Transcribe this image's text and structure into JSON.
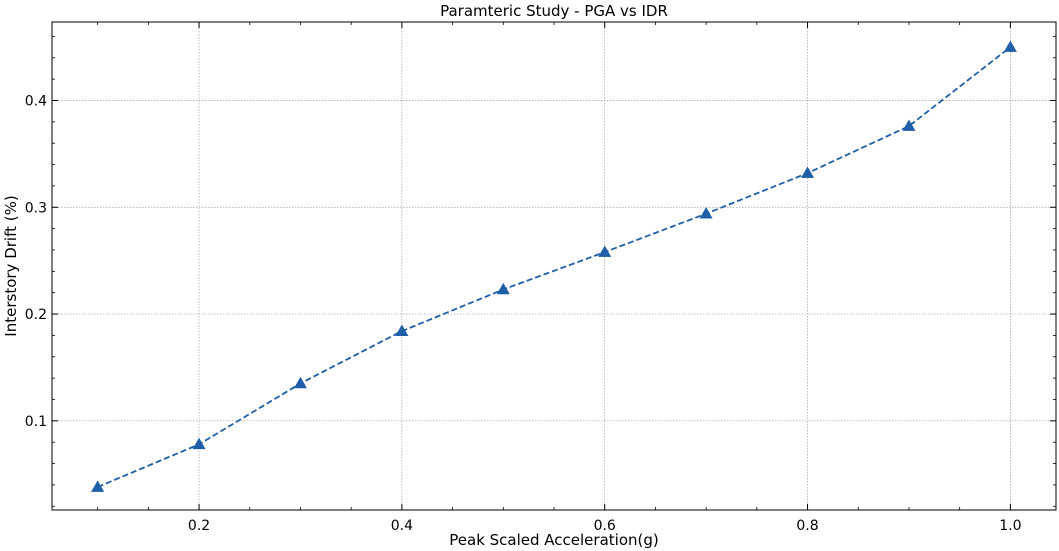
{
  "chart_data": {
    "type": "line",
    "title": "Paramteric Study - PGA vs IDR",
    "xlabel": "Peak Scaled Acceleration(g)",
    "ylabel": "Interstory Drift (%)",
    "xlim": [
      0.055,
      1.045
    ],
    "ylim": [
      0.0165,
      0.4735
    ],
    "x_ticks": [
      0.2,
      0.4,
      0.6,
      0.8,
      1.0
    ],
    "x_tick_labels": [
      "0.2",
      "0.4",
      "0.6",
      "0.8",
      "1.0"
    ],
    "y_ticks": [
      0.1,
      0.2,
      0.3,
      0.4
    ],
    "y_tick_labels": [
      "0.1",
      "0.2",
      "0.3",
      "0.4"
    ],
    "grid": true,
    "series": [
      {
        "x": [
          0.1,
          0.2,
          0.3,
          0.4,
          0.5,
          0.6,
          0.7,
          0.8,
          0.9,
          1.0
        ],
        "y": [
          0.038,
          0.078,
          0.135,
          0.184,
          0.223,
          0.258,
          0.294,
          0.332,
          0.376,
          0.45
        ],
        "color": "#1f5fa8",
        "line_style": "dashed",
        "marker": "triangle"
      }
    ]
  }
}
